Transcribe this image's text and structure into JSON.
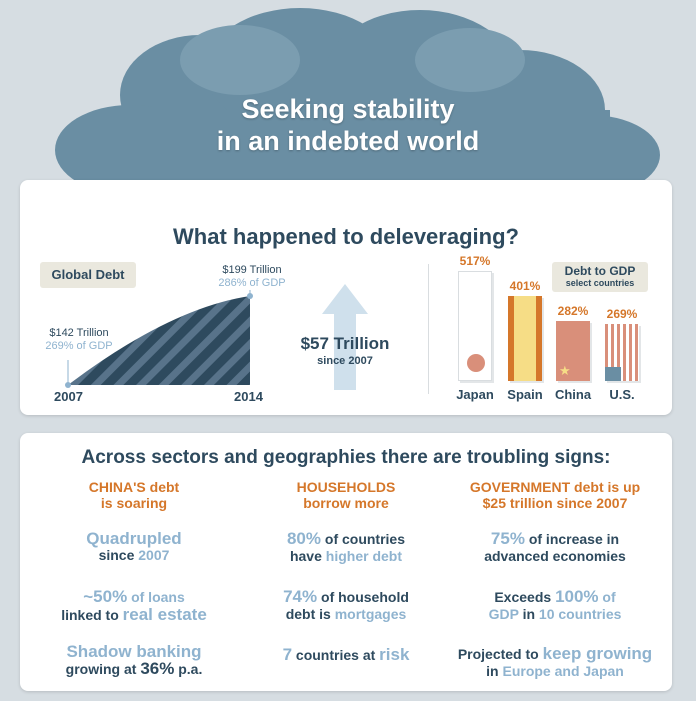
{
  "title": {
    "line1": "Seeking stability",
    "line2": "in an indebted world"
  },
  "top_section": {
    "heading": "What happened to deleveraging?",
    "global_debt": {
      "label": "Global Debt",
      "start": {
        "year": "2007",
        "amount": "$142 Trillion",
        "pct": "269% of GDP"
      },
      "end": {
        "year": "2014",
        "amount": "$199 Trillion",
        "pct": "286% of GDP"
      }
    },
    "increase": {
      "amount": "$57 Trillion",
      "note": "since 2007"
    },
    "debt_to_gdp": {
      "label": "Debt to GDP",
      "sublabel": "select countries"
    }
  },
  "chart_data": {
    "type": "bar",
    "title": "Debt to GDP",
    "categories": [
      "Japan",
      "Spain",
      "China",
      "U.S."
    ],
    "values": [
      517,
      401,
      282,
      269
    ],
    "value_labels": [
      "517%",
      "401%",
      "282%",
      "269%"
    ],
    "ylim": [
      0,
      517
    ]
  },
  "bottom_section": {
    "heading": "Across sectors and geographies there are troubling signs:",
    "china": {
      "head1": "CHINA'S",
      "head1b": " debt",
      "head2": "is soaring",
      "s1_a": "Quadrupled",
      "s1_b": "since ",
      "s1_c": "2007",
      "s2_a": "~50%",
      "s2_b": " of loans",
      "s2_c": "linked to ",
      "s2_d": "real estate",
      "s3_a": "Shadow banking",
      "s3_b": "growing at ",
      "s3_c": "36%",
      "s3_d": " p.a."
    },
    "households": {
      "head1": "HOUSEHOLDS",
      "head2": "borrow more",
      "s1_a": "80%",
      "s1_b": " of countries",
      "s1_c": "have ",
      "s1_d": "higher debt",
      "s2_a": "74%",
      "s2_b": " of household",
      "s2_c": "debt is ",
      "s2_d": "mortgages",
      "s3_a": "7",
      "s3_b": " countries at ",
      "s3_c": "risk"
    },
    "government": {
      "head1": "GOVERNMENT",
      "head1b": " debt is up",
      "head2": "$25 trillion since 2007",
      "s1_a": "75%",
      "s1_b": " of increase in",
      "s1_c": "advanced economies",
      "s2_a": "Exceeds ",
      "s2_b": "100%",
      "s2_c": " of",
      "s2_d": "GDP",
      "s2_e": " in ",
      "s2_f": "10 countries",
      "s3_a": "Projected to ",
      "s3_b": "keep growing",
      "s3_c": "in ",
      "s3_d": "Europe and Japan"
    }
  },
  "colors": {
    "navy": "#2e4a5e",
    "light_blue": "#8fb3cf",
    "orange": "#d5772a",
    "cloud": "#6a8ea3"
  }
}
